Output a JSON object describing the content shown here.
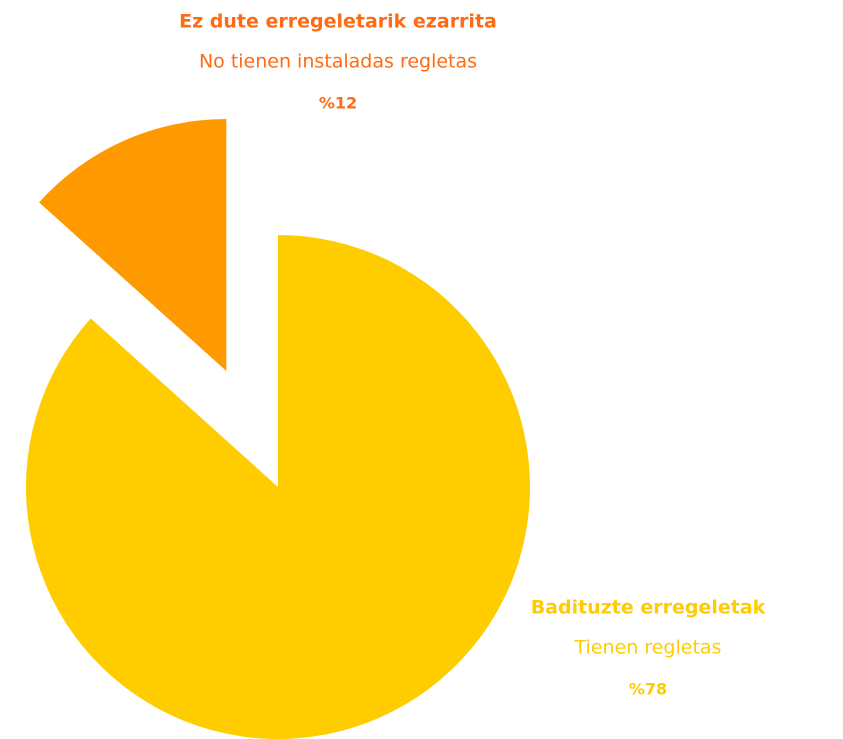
{
  "chart_data": {
    "type": "pie",
    "categories": [
      "Badituzte erregeletak",
      "Ez dute erregeletarik ezarrita"
    ],
    "category_translations": [
      "Tienen regletas",
      "No tienen instaladas regletas"
    ],
    "values": [
      78,
      12
    ],
    "value_labels": [
      "%78",
      "%12"
    ],
    "colors": [
      "#ffcc00",
      "#ff9900"
    ],
    "label_colors": [
      "#ffcc00",
      "#ff6a13"
    ],
    "explode": [
      false,
      true
    ]
  }
}
